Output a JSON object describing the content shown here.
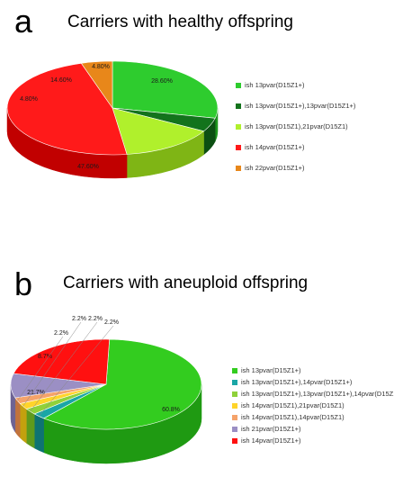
{
  "chart_data": [
    {
      "type": "pie",
      "panel": "a",
      "title": "Carriers with healthy offspring",
      "slices": [
        {
          "label": "ish 13pvar(D15Z1+)",
          "value": 28.6,
          "display": "28.60%",
          "color": "#2ecc2e",
          "side": "#1e961e"
        },
        {
          "label": "ish 13pvar(D15Z1+),13pvar(D15Z1+)",
          "value": 4.8,
          "display": "4.80%",
          "color": "#13731c",
          "side": "#0c4f12"
        },
        {
          "label": "ish 13pvar(D15Z1),21pvar(D15Z1)",
          "value": 14.6,
          "display": "14.60%",
          "color": "#b0f02c",
          "side": "#7fb515"
        },
        {
          "label": "ish 14pvar(D15Z1+)",
          "value": 47.6,
          "display": "47.60%",
          "color": "#ff1a1a",
          "side": "#c10000"
        },
        {
          "label": "ish 22pvar(D15Z1+)",
          "value": 4.8,
          "display": "4.80%",
          "color": "#e8871a",
          "side": "#a95e0c"
        }
      ],
      "legend_position": "right"
    },
    {
      "type": "pie",
      "panel": "b",
      "title": "Carriers with aneuploid offspring",
      "slices": [
        {
          "label": "ish 13pvar(D15Z1+)",
          "value": 60.8,
          "display": "60.8%",
          "color": "#33cc1f",
          "side": "#1f9a12"
        },
        {
          "label": "ish 13pvar(D15Z1+),14pvar(D15Z1+)",
          "value": 2.2,
          "display": "2.2%",
          "color": "#1aa6a6",
          "side": "#0e7373"
        },
        {
          "label": "ish 13pvar(D15Z1+),13pvar(D15Z1+),14pvar(D15Z1+)",
          "value": 2.2,
          "display": "2.2%",
          "color": "#8fd13a",
          "side": "#5f9a1c"
        },
        {
          "label": "ish 14pvar(D15Z1),21pvar(D15Z1)",
          "value": 2.2,
          "display": "2.2%",
          "color": "#ffd42a",
          "side": "#c4a10e"
        },
        {
          "label": "ish 14pvar(D15Z1),14pvar(D15Z1)",
          "value": 2.2,
          "display": "2.2%",
          "color": "#f5a36a",
          "side": "#c2733c"
        },
        {
          "label": "ish 21pvar(D15Z1+)",
          "value": 8.7,
          "display": "8.7%",
          "color": "#9b8fc4",
          "side": "#6d6394"
        },
        {
          "label": "ish 14pvar(D15Z1+)",
          "value": 21.7,
          "display": "21.7%",
          "color": "#ff1010",
          "side": "#c00000"
        }
      ],
      "legend_position": "right"
    }
  ],
  "panels": {
    "a": {
      "letter": "a",
      "title": "Carriers with healthy offspring"
    },
    "b": {
      "letter": "b",
      "title": "Carriers with aneuploid offspring"
    }
  }
}
